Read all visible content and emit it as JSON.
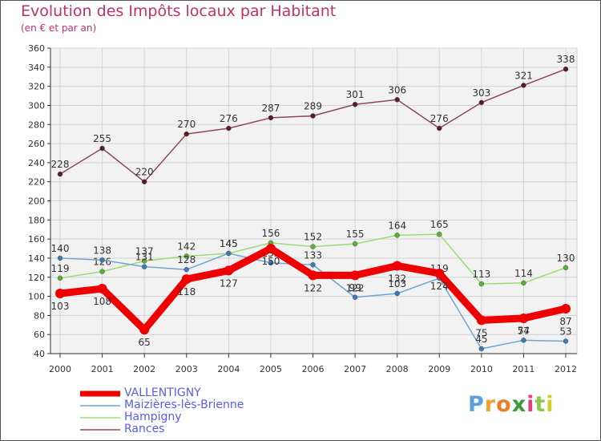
{
  "chart_data": {
    "type": "line",
    "title": "Evolution des Impôts locaux par Habitant",
    "subtitle": "(en € et par an)",
    "xlabel": "",
    "ylabel": "",
    "ylim": [
      40,
      360
    ],
    "ytick_step": 20,
    "grid": true,
    "legend_position": "bottom-left",
    "categories": [
      "2000",
      "2001",
      "2002",
      "2003",
      "2004",
      "2005",
      "2006",
      "2007",
      "2008",
      "2009",
      "2010",
      "2011",
      "2012"
    ],
    "series": [
      {
        "name": "VALLENTIGNY",
        "color": "#ee0000",
        "values": [
          103,
          108,
          65,
          118,
          127,
          150,
          122,
          122,
          132,
          124,
          75,
          77,
          87
        ],
        "labels": [
          "103",
          "108",
          "65",
          "118",
          "127",
          "150",
          "122",
          "122",
          "132",
          "124",
          "75",
          "77",
          "87"
        ]
      },
      {
        "name": "Maizières-lès-Brienne",
        "color": "#6fa6d2",
        "values": [
          140,
          138,
          131,
          128,
          145,
          135,
          133,
          99,
          103,
          119,
          45,
          54,
          53
        ],
        "labels": [
          "140",
          "138",
          "131",
          "128",
          "145",
          "135",
          "133",
          "99",
          "103",
          "119",
          "45",
          "54",
          "53"
        ]
      },
      {
        "name": "Hampigny",
        "color": "#9ade72",
        "values": [
          119,
          126,
          137,
          142,
          145,
          156,
          152,
          155,
          164,
          165,
          113,
          114,
          130
        ],
        "labels": [
          "119",
          "126",
          "137",
          "142",
          "145",
          "156",
          "152",
          "155",
          "164",
          "165",
          "113",
          "114",
          "130"
        ]
      },
      {
        "name": "Rances",
        "color": "#8b4a55",
        "values": [
          228,
          255,
          220,
          270,
          276,
          287,
          289,
          301,
          306,
          276,
          303,
          321,
          338
        ],
        "labels": [
          "228",
          "255",
          "220",
          "270",
          "276",
          "287",
          "289",
          "301",
          "306",
          "276",
          "303",
          "321",
          "338"
        ]
      }
    ]
  },
  "logo": {
    "letters": [
      "P",
      "r",
      "o",
      "x",
      "i",
      "t",
      "i"
    ],
    "colors": [
      "#5aa0dc",
      "#f0a030",
      "#e87f2a",
      "#3a9a3a",
      "#e04080",
      "#8ac850",
      "#d0d020"
    ],
    "text": "Proxiti"
  }
}
